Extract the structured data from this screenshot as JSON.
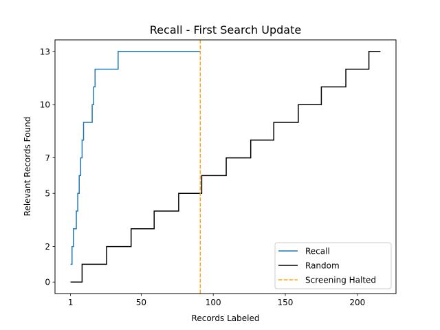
{
  "chart_data": {
    "type": "line",
    "title": "Recall - First Search Update",
    "xlabel": "Records Labeled",
    "ylabel": "Relevant Records Found",
    "xlim": [
      -9.8,
      226.8
    ],
    "ylim": [
      -0.65,
      13.65
    ],
    "xticks": [
      1,
      50,
      100,
      150,
      200
    ],
    "yticks": [
      0,
      2,
      5,
      7,
      10,
      13
    ],
    "grid": false,
    "legend_position": "lower right",
    "colors": {
      "recall": "#1f77b4",
      "random": "#000000",
      "halt": "#ffa500"
    },
    "series": [
      {
        "name": "Recall",
        "style": "steps-post",
        "x": [
          1,
          2,
          3,
          5,
          6,
          7,
          8,
          9,
          10,
          16,
          17,
          18,
          20,
          34,
          91
        ],
        "y": [
          1,
          2,
          3,
          4,
          5,
          6,
          7,
          8,
          9,
          10,
          11,
          12,
          12,
          13,
          13
        ]
      },
      {
        "name": "Random",
        "style": "steps-post",
        "x": [
          1,
          9,
          26,
          43,
          59,
          76,
          92,
          109,
          126,
          142,
          159,
          175,
          192,
          208,
          216
        ],
        "y": [
          0,
          1,
          2,
          3,
          4,
          5,
          6,
          7,
          8,
          9,
          10,
          11,
          12,
          13,
          13
        ]
      }
    ],
    "vlines": [
      {
        "name": "Screening Halted",
        "x": 91,
        "style": "dashed"
      }
    ],
    "legend": [
      "Recall",
      "Random",
      "Screening Halted"
    ]
  }
}
